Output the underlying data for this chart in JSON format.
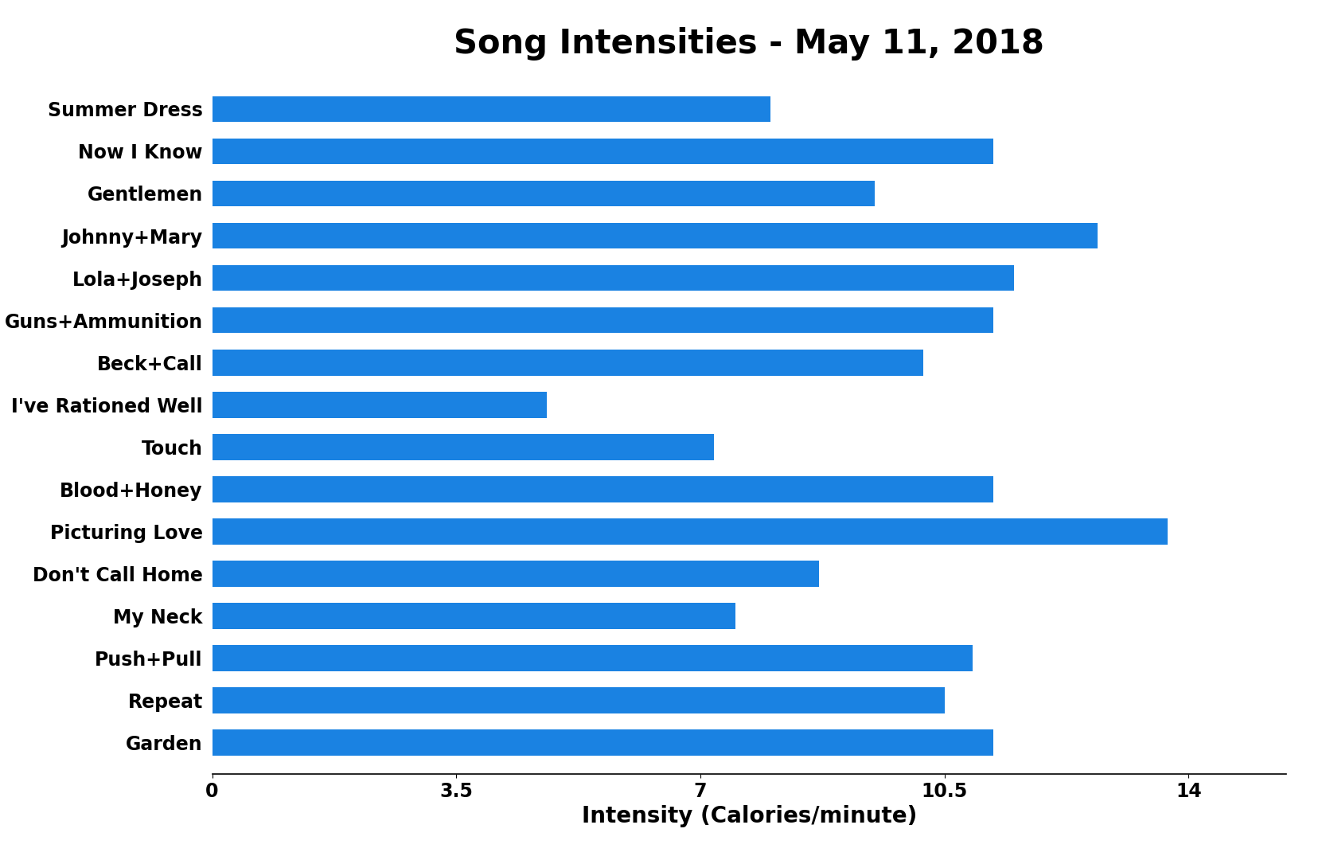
{
  "title": "Song Intensities - May 11, 2018",
  "xlabel": "Intensity (Calories/minute)",
  "songs": [
    "Summer Dress",
    "Now I Know",
    "Gentlemen",
    "Johnny+Mary",
    "Lola+Joseph",
    "Guns+Ammunition",
    "Beck+Call",
    "I've Rationed Well",
    "Touch",
    "Blood+Honey",
    "Picturing Love",
    "Don't Call Home",
    "My Neck",
    "Push+Pull",
    "Repeat",
    "Garden"
  ],
  "values": [
    8.0,
    11.2,
    9.5,
    12.7,
    11.5,
    11.2,
    10.2,
    4.8,
    7.2,
    11.2,
    13.7,
    8.7,
    7.5,
    10.9,
    10.5,
    11.2
  ],
  "bar_color": "#1a82e2",
  "background_color": "#ffffff",
  "xlim": [
    0,
    15.4
  ],
  "xticks": [
    0,
    3.5,
    7,
    10.5,
    14
  ],
  "title_fontsize": 30,
  "label_fontsize": 20,
  "tick_fontsize": 17,
  "bar_height": 0.62
}
